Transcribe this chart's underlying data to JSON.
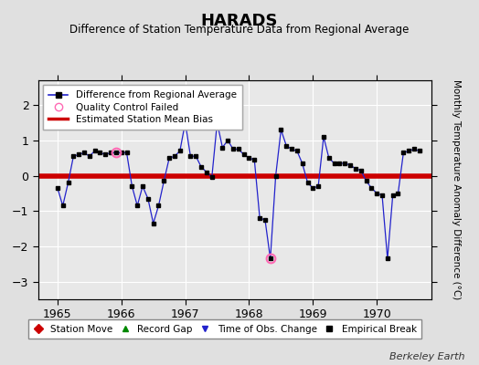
{
  "title": "HARADS",
  "subtitle": "Difference of Station Temperature Data from Regional Average",
  "ylabel": "Monthly Temperature Anomaly Difference (°C)",
  "footer": "Berkeley Earth",
  "bias": 0.0,
  "ylim": [
    -3.5,
    2.7
  ],
  "xlim": [
    1964.7,
    1970.85
  ],
  "xticks": [
    1965,
    1966,
    1967,
    1968,
    1969,
    1970
  ],
  "yticks": [
    -3,
    -2,
    -1,
    0,
    1,
    2
  ],
  "bg_color": "#e0e0e0",
  "plot_bg_color": "#e8e8e8",
  "grid_color": "#ffffff",
  "line_color": "#2222cc",
  "marker_color": "#000000",
  "bias_color": "#cc0000",
  "qc_color": "#ff69b4",
  "data": [
    [
      1965.0,
      -0.35
    ],
    [
      1965.083,
      -0.85
    ],
    [
      1965.167,
      -0.2
    ],
    [
      1965.25,
      0.55
    ],
    [
      1965.333,
      0.6
    ],
    [
      1965.417,
      0.65
    ],
    [
      1965.5,
      0.55
    ],
    [
      1965.583,
      0.7
    ],
    [
      1965.667,
      0.65
    ],
    [
      1965.75,
      0.6
    ],
    [
      1965.833,
      0.65
    ],
    [
      1965.917,
      0.65
    ],
    [
      1966.0,
      0.65
    ],
    [
      1966.083,
      0.65
    ],
    [
      1966.167,
      -0.3
    ],
    [
      1966.25,
      -0.85
    ],
    [
      1966.333,
      -0.3
    ],
    [
      1966.417,
      -0.65
    ],
    [
      1966.5,
      -1.35
    ],
    [
      1966.583,
      -0.85
    ],
    [
      1966.667,
      -0.15
    ],
    [
      1966.75,
      0.5
    ],
    [
      1966.833,
      0.55
    ],
    [
      1966.917,
      0.7
    ],
    [
      1967.0,
      1.5
    ],
    [
      1967.083,
      0.55
    ],
    [
      1967.167,
      0.55
    ],
    [
      1967.25,
      0.25
    ],
    [
      1967.333,
      0.1
    ],
    [
      1967.417,
      -0.05
    ],
    [
      1967.5,
      1.5
    ],
    [
      1967.583,
      0.8
    ],
    [
      1967.667,
      1.0
    ],
    [
      1967.75,
      0.75
    ],
    [
      1967.833,
      0.75
    ],
    [
      1967.917,
      0.6
    ],
    [
      1968.0,
      0.5
    ],
    [
      1968.083,
      0.45
    ],
    [
      1968.167,
      -1.2
    ],
    [
      1968.25,
      -1.25
    ],
    [
      1968.333,
      -2.35
    ],
    [
      1968.417,
      0.0
    ],
    [
      1968.5,
      1.3
    ],
    [
      1968.583,
      0.85
    ],
    [
      1968.667,
      0.75
    ],
    [
      1968.75,
      0.7
    ],
    [
      1968.833,
      0.35
    ],
    [
      1968.917,
      -0.2
    ],
    [
      1969.0,
      -0.35
    ],
    [
      1969.083,
      -0.3
    ],
    [
      1969.167,
      1.1
    ],
    [
      1969.25,
      0.5
    ],
    [
      1969.333,
      0.35
    ],
    [
      1969.417,
      0.35
    ],
    [
      1969.5,
      0.35
    ],
    [
      1969.583,
      0.3
    ],
    [
      1969.667,
      0.2
    ],
    [
      1969.75,
      0.15
    ],
    [
      1969.833,
      -0.15
    ],
    [
      1969.917,
      -0.35
    ],
    [
      1970.0,
      -0.5
    ],
    [
      1970.083,
      -0.55
    ],
    [
      1970.167,
      -2.35
    ],
    [
      1970.25,
      -0.55
    ],
    [
      1970.333,
      -0.5
    ],
    [
      1970.417,
      0.65
    ],
    [
      1970.5,
      0.7
    ],
    [
      1970.583,
      0.75
    ],
    [
      1970.667,
      0.7
    ]
  ],
  "qc_points": [
    [
      1965.917,
      0.65
    ],
    [
      1968.333,
      -2.35
    ]
  ],
  "legend1_labels": [
    "Difference from Regional Average",
    "Quality Control Failed",
    "Estimated Station Mean Bias"
  ],
  "legend2_labels": [
    "Station Move",
    "Record Gap",
    "Time of Obs. Change",
    "Empirical Break"
  ]
}
